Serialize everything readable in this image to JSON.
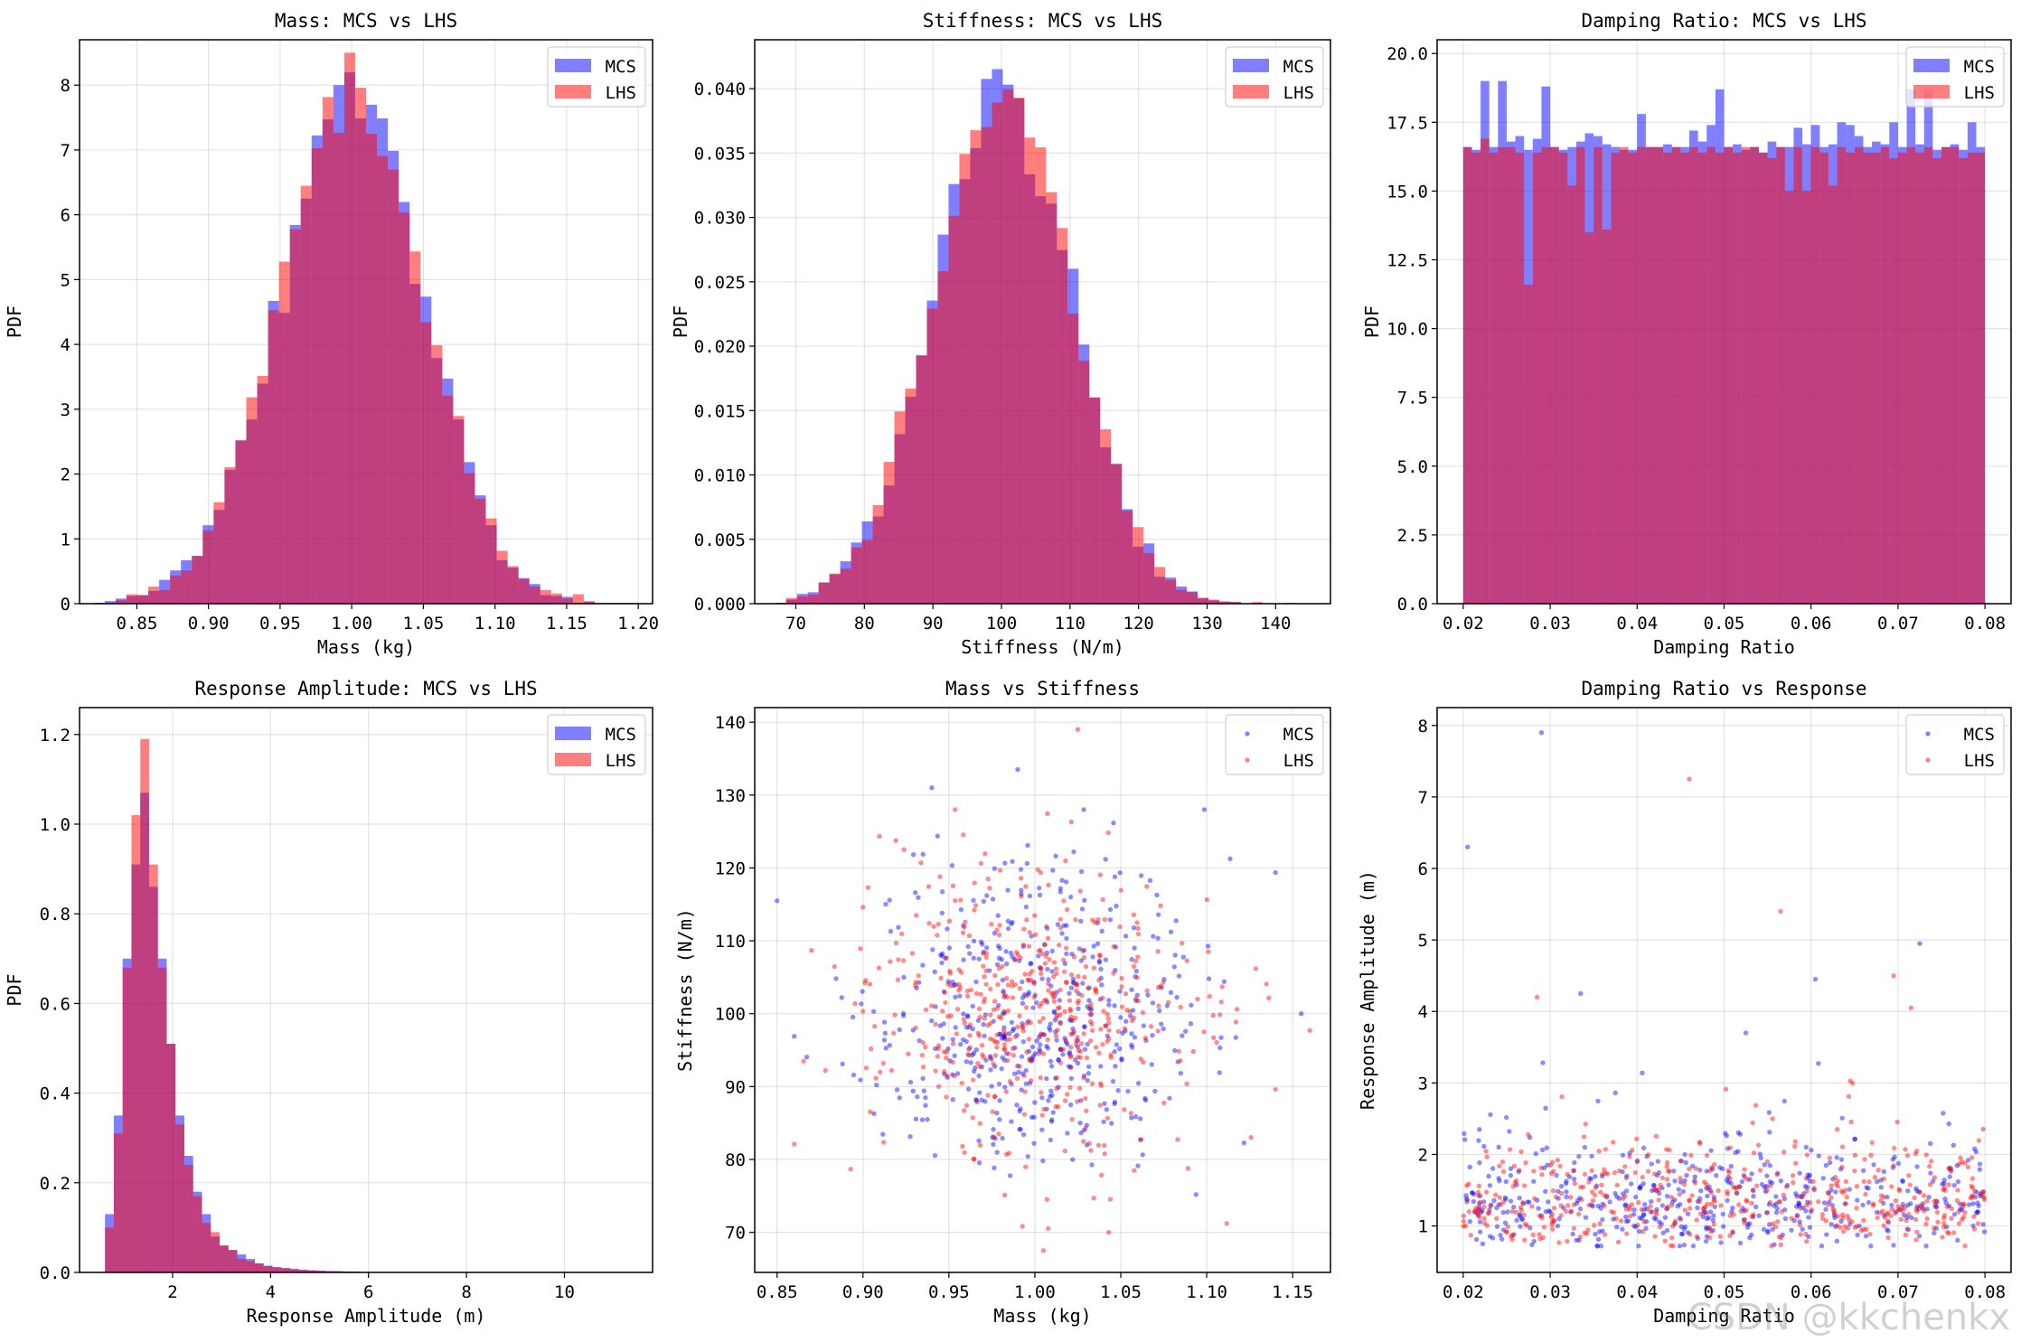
{
  "colors": {
    "mcs": "#0000ff",
    "lhs": "#ff0000",
    "overlap": "#b03060"
  },
  "watermark": "CSDN @kkchenkx",
  "chart_data": [
    {
      "type": "bar",
      "subtype": "histogram-overlay",
      "title": "Mass: MCS vs LHS",
      "xlabel": "Mass (kg)",
      "ylabel": "PDF",
      "xlim": [
        0.81,
        1.21
      ],
      "ylim": [
        0,
        8.7
      ],
      "xticks": [
        0.85,
        0.9,
        0.95,
        1.0,
        1.05,
        1.1,
        1.15,
        1.2
      ],
      "xtick_labels": [
        "0.85",
        "0.90",
        "0.95",
        "1.00",
        "1.05",
        "1.10",
        "1.15",
        "1.20"
      ],
      "yticks": [
        0,
        1,
        2,
        3,
        4,
        5,
        6,
        7,
        8
      ],
      "ytick_labels": [
        "0",
        "1",
        "2",
        "3",
        "4",
        "5",
        "6",
        "7",
        "8"
      ],
      "legend": [
        "MCS",
        "LHS"
      ],
      "legend_position": "top-right",
      "dist": {
        "kind": "normal",
        "mean": 1.0,
        "sd": 0.05,
        "range": [
          0.82,
          1.2
        ]
      }
    },
    {
      "type": "bar",
      "subtype": "histogram-overlay",
      "title": "Stiffness: MCS vs LHS",
      "xlabel": "Stiffness (N/m)",
      "ylabel": "PDF",
      "xlim": [
        64,
        148
      ],
      "ylim": [
        0,
        0.0438
      ],
      "xticks": [
        70,
        80,
        90,
        100,
        110,
        120,
        130,
        140
      ],
      "xtick_labels": [
        "70",
        "80",
        "90",
        "100",
        "110",
        "120",
        "130",
        "140"
      ],
      "yticks": [
        0,
        0.005,
        0.01,
        0.015,
        0.02,
        0.025,
        0.03,
        0.035,
        0.04
      ],
      "ytick_labels": [
        "0.000",
        "0.005",
        "0.010",
        "0.015",
        "0.020",
        "0.025",
        "0.030",
        "0.035",
        "0.040"
      ],
      "legend": [
        "MCS",
        "LHS"
      ],
      "legend_position": "top-right",
      "dist": {
        "kind": "normal",
        "mean": 100,
        "sd": 10,
        "range": [
          67,
          146
        ]
      }
    },
    {
      "type": "bar",
      "subtype": "histogram-overlay",
      "title": "Damping Ratio: MCS vs LHS",
      "xlabel": "Damping Ratio",
      "ylabel": "PDF",
      "xlim": [
        0.017,
        0.083
      ],
      "ylim": [
        0,
        20.5
      ],
      "xticks": [
        0.02,
        0.03,
        0.04,
        0.05,
        0.06,
        0.07,
        0.08
      ],
      "xtick_labels": [
        "0.02",
        "0.03",
        "0.04",
        "0.05",
        "0.06",
        "0.07",
        "0.08"
      ],
      "yticks": [
        0,
        2.5,
        5,
        7.5,
        10,
        12.5,
        15,
        17.5,
        20
      ],
      "ytick_labels": [
        "0.0",
        "2.5",
        "5.0",
        "7.5",
        "10.0",
        "12.5",
        "15.0",
        "17.5",
        "20.0"
      ],
      "legend": [
        "MCS",
        "LHS"
      ],
      "legend_position": "top-right",
      "range": [
        0.02,
        0.08
      ],
      "mcs_values": [
        16.6,
        16.5,
        19.0,
        16.6,
        19.0,
        16.8,
        17.0,
        16.5,
        16.9,
        18.8,
        16.6,
        16.5,
        16.6,
        16.8,
        17.1,
        17.0,
        16.7,
        16.6,
        16.5,
        16.5,
        17.8,
        16.6,
        16.6,
        16.7,
        16.6,
        16.6,
        17.2,
        16.8,
        17.4,
        18.7,
        16.6,
        16.7,
        16.5,
        16.6,
        16.4,
        16.8,
        16.6,
        16.6,
        17.3,
        16.7,
        17.4,
        16.6,
        16.7,
        17.5,
        17.4,
        17.0,
        16.6,
        16.8,
        16.7,
        17.5,
        16.6,
        18.7,
        16.7,
        18.7,
        16.5,
        16.6,
        16.7,
        16.5,
        17.5,
        16.6
      ],
      "lhs_values": [
        16.6,
        16.4,
        16.9,
        16.4,
        16.6,
        16.6,
        16.4,
        11.6,
        16.4,
        16.6,
        16.6,
        16.4,
        15.2,
        16.6,
        13.5,
        16.6,
        13.6,
        16.4,
        16.6,
        16.4,
        16.6,
        16.6,
        16.6,
        16.4,
        16.6,
        16.4,
        16.6,
        16.4,
        16.6,
        16.4,
        16.6,
        16.4,
        16.6,
        16.6,
        16.4,
        16.2,
        16.6,
        15.0,
        16.6,
        15.0,
        16.6,
        16.4,
        15.2,
        16.6,
        16.4,
        16.6,
        16.4,
        16.4,
        16.6,
        16.2,
        16.4,
        16.6,
        16.4,
        16.6,
        16.2,
        16.6,
        16.6,
        16.2,
        16.4,
        16.4
      ]
    },
    {
      "type": "bar",
      "subtype": "histogram-overlay",
      "title": "Response Amplitude: MCS vs LHS",
      "xlabel": "Response Amplitude (m)",
      "ylabel": "PDF",
      "xlim": [
        0.1,
        11.8
      ],
      "ylim": [
        0,
        1.26
      ],
      "xticks": [
        2,
        4,
        6,
        8,
        10
      ],
      "xtick_labels": [
        "2",
        "4",
        "6",
        "8",
        "10"
      ],
      "yticks": [
        0,
        0.2,
        0.4,
        0.6,
        0.8,
        1.0,
        1.2
      ],
      "ytick_labels": [
        "0.0",
        "0.2",
        "0.4",
        "0.6",
        "0.8",
        "1.0",
        "1.2"
      ],
      "legend": [
        "MCS",
        "LHS"
      ],
      "legend_position": "top-right",
      "bin_edges_start": 0.62,
      "bin_width": 0.18,
      "mcs_values": [
        0.13,
        0.35,
        0.7,
        0.91,
        1.07,
        0.86,
        0.7,
        0.51,
        0.35,
        0.26,
        0.18,
        0.13,
        0.08,
        0.06,
        0.05,
        0.04,
        0.03,
        0.02,
        0.015,
        0.012,
        0.01,
        0.008,
        0.006,
        0.005,
        0.004,
        0.003,
        0.003,
        0.002,
        0.002,
        0.001
      ],
      "lhs_values": [
        0.1,
        0.31,
        0.68,
        1.02,
        1.19,
        0.91,
        0.68,
        0.51,
        0.33,
        0.24,
        0.17,
        0.11,
        0.09,
        0.06,
        0.05,
        0.03,
        0.025,
        0.02,
        0.014,
        0.011,
        0.009,
        0.007,
        0.005,
        0.004,
        0.003,
        0.003,
        0.002,
        0.002,
        0.001,
        0.001
      ]
    },
    {
      "type": "scatter",
      "title": "Mass vs Stiffness",
      "xlabel": "Mass (kg)",
      "ylabel": "Stiffness (N/m)",
      "xlim": [
        0.837,
        1.172
      ],
      "ylim": [
        64.5,
        142
      ],
      "xticks": [
        0.85,
        0.9,
        0.95,
        1.0,
        1.05,
        1.1,
        1.15
      ],
      "xtick_labels": [
        "0.85",
        "0.90",
        "0.95",
        "1.00",
        "1.05",
        "1.10",
        "1.15"
      ],
      "yticks": [
        70,
        80,
        90,
        100,
        110,
        120,
        130,
        140
      ],
      "ytick_labels": [
        "70",
        "80",
        "90",
        "100",
        "110",
        "120",
        "130",
        "140"
      ],
      "legend": [
        "MCS",
        "LHS"
      ],
      "legend_position": "top-right",
      "points_per_series": 500,
      "dist": {
        "x": {
          "mean": 1.0,
          "sd": 0.05
        },
        "y": {
          "mean": 100,
          "sd": 10
        }
      },
      "notable_points": [
        [
          0.85,
          115.5
        ],
        [
          1.025,
          139
        ],
        [
          0.99,
          133.5
        ],
        [
          1.005,
          67.5
        ],
        [
          1.155,
          100
        ],
        [
          1.16,
          97.7
        ],
        [
          0.94,
          131
        ]
      ]
    },
    {
      "type": "scatter",
      "title": "Damping Ratio vs Response",
      "xlabel": "Damping Ratio",
      "ylabel": "Response Amplitude (m)",
      "xlim": [
        0.017,
        0.083
      ],
      "ylim": [
        0.35,
        8.25
      ],
      "xticks": [
        0.02,
        0.03,
        0.04,
        0.05,
        0.06,
        0.07,
        0.08
      ],
      "xtick_labels": [
        "0.02",
        "0.03",
        "0.04",
        "0.05",
        "0.06",
        "0.07",
        "0.08"
      ],
      "yticks": [
        1,
        2,
        3,
        4,
        5,
        6,
        7,
        8
      ],
      "ytick_labels": [
        "1",
        "2",
        "3",
        "4",
        "5",
        "6",
        "7",
        "8"
      ],
      "legend": [
        "MCS",
        "LHS"
      ],
      "legend_position": "top-right",
      "points_per_series": 500,
      "notable_points": [
        [
          0.029,
          7.9
        ],
        [
          0.046,
          7.25
        ],
        [
          0.0205,
          6.3
        ],
        [
          0.0565,
          5.4
        ],
        [
          0.0725,
          4.95
        ],
        [
          0.0695,
          4.5
        ],
        [
          0.0605,
          4.45
        ],
        [
          0.0285,
          4.2
        ],
        [
          0.0335,
          4.25
        ],
        [
          0.0715,
          4.05
        ],
        [
          0.0525,
          3.7
        ]
      ]
    }
  ]
}
